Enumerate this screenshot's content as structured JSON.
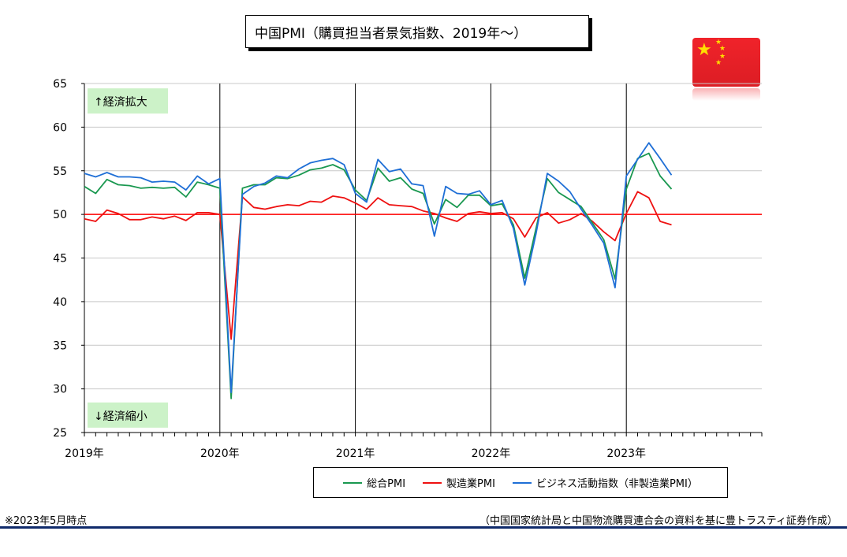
{
  "title": "中国PMI（購買担当者景気指数、2019年～）",
  "flag": {
    "name": "china-flag-icon",
    "colors": [
      "#e9212a",
      "#ffde00"
    ]
  },
  "footnote": "※2023年5月時点",
  "source": "（中国国家統計局と中国物流購買連合会の資料を基に豊トラスティ証券作成）",
  "chart_data": {
    "type": "line",
    "title": "中国PMI（購買担当者景気指数、2019年～）",
    "xlabel": "",
    "ylabel": "",
    "ylim": [
      25,
      65
    ],
    "yticks": [
      25,
      30,
      35,
      40,
      45,
      50,
      55,
      60,
      65
    ],
    "year_labels": [
      "2019年",
      "2020年",
      "2021年",
      "2022年",
      "2023年"
    ],
    "grid": true,
    "legend_position": "bottom",
    "months_on_axis": 60,
    "reference_line": {
      "value": 50,
      "color": "#ff0000"
    },
    "annotations": [
      {
        "text": "↑経済拡大",
        "y": 63
      },
      {
        "text": "↓経済縮小",
        "y": 27
      }
    ],
    "x": [
      "2019-01",
      "2019-02",
      "2019-03",
      "2019-04",
      "2019-05",
      "2019-06",
      "2019-07",
      "2019-08",
      "2019-09",
      "2019-10",
      "2019-11",
      "2019-12",
      "2020-01",
      "2020-02",
      "2020-03",
      "2020-04",
      "2020-05",
      "2020-06",
      "2020-07",
      "2020-08",
      "2020-09",
      "2020-10",
      "2020-11",
      "2020-12",
      "2021-01",
      "2021-02",
      "2021-03",
      "2021-04",
      "2021-05",
      "2021-06",
      "2021-07",
      "2021-08",
      "2021-09",
      "2021-10",
      "2021-11",
      "2021-12",
      "2022-01",
      "2022-02",
      "2022-03",
      "2022-04",
      "2022-05",
      "2022-06",
      "2022-07",
      "2022-08",
      "2022-09",
      "2022-10",
      "2022-11",
      "2022-12",
      "2023-01",
      "2023-02",
      "2023-03",
      "2023-04",
      "2023-05"
    ],
    "series": [
      {
        "name": "総合PMI",
        "color": "#1a9850",
        "values": [
          53.2,
          52.4,
          54.0,
          53.4,
          53.3,
          53.0,
          53.1,
          53.0,
          53.1,
          52.0,
          53.7,
          53.4,
          53.0,
          28.9,
          53.0,
          53.4,
          53.4,
          54.2,
          54.1,
          54.5,
          55.1,
          55.3,
          55.7,
          55.1,
          52.8,
          51.6,
          55.3,
          53.8,
          54.2,
          52.9,
          52.4,
          48.9,
          51.7,
          50.8,
          52.2,
          52.2,
          51.0,
          51.2,
          48.8,
          42.7,
          48.4,
          54.1,
          52.5,
          51.7,
          50.9,
          49.0,
          47.1,
          42.6,
          52.9,
          56.4,
          57.0,
          54.4,
          52.9
        ]
      },
      {
        "name": "製造業PMI",
        "color": "#ee1111",
        "values": [
          49.5,
          49.2,
          50.5,
          50.1,
          49.4,
          49.4,
          49.7,
          49.5,
          49.8,
          49.3,
          50.2,
          50.2,
          50.0,
          35.7,
          52.0,
          50.8,
          50.6,
          50.9,
          51.1,
          51.0,
          51.5,
          51.4,
          52.1,
          51.9,
          51.3,
          50.6,
          51.9,
          51.1,
          51.0,
          50.9,
          50.4,
          50.1,
          49.6,
          49.2,
          50.1,
          50.3,
          50.1,
          50.2,
          49.5,
          47.4,
          49.6,
          50.2,
          49.0,
          49.4,
          50.1,
          49.2,
          48.0,
          47.0,
          50.1,
          52.6,
          51.9,
          49.2,
          48.8
        ]
      },
      {
        "name": "ビジネス活動指数（非製造業PMI）",
        "color": "#1f6fd6",
        "values": [
          54.7,
          54.3,
          54.8,
          54.3,
          54.3,
          54.2,
          53.7,
          53.8,
          53.7,
          52.8,
          54.4,
          53.5,
          54.1,
          29.6,
          52.3,
          53.2,
          53.6,
          54.4,
          54.2,
          55.2,
          55.9,
          56.2,
          56.4,
          55.7,
          52.4,
          51.4,
          56.3,
          54.9,
          55.2,
          53.5,
          53.3,
          47.5,
          53.2,
          52.4,
          52.3,
          52.7,
          51.1,
          51.6,
          48.4,
          41.9,
          47.8,
          54.7,
          53.8,
          52.6,
          50.6,
          48.7,
          46.7,
          41.6,
          54.4,
          56.3,
          58.2,
          56.4,
          54.5
        ]
      }
    ]
  }
}
